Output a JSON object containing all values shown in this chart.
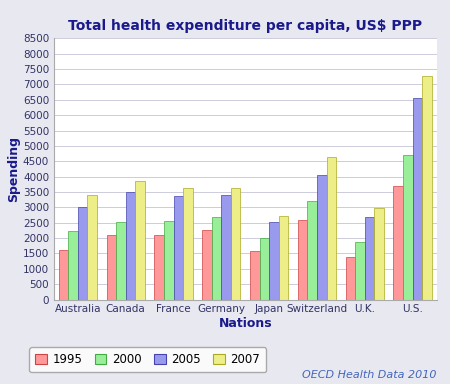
{
  "title": "Total health expenditure per capita, US$ PPP",
  "xlabel": "Nations",
  "ylabel": "Spending",
  "nations": [
    "Australia",
    "Canada",
    "France",
    "Germany",
    "Japan",
    "Switzerland",
    "U.K.",
    "U.S."
  ],
  "years": [
    "1995",
    "2000",
    "2005",
    "2007"
  ],
  "values": {
    "1995": [
      1600,
      2090,
      2110,
      2250,
      1580,
      2590,
      1370,
      3700
    ],
    "2000": [
      2230,
      2535,
      2560,
      2670,
      2000,
      3220,
      1860,
      4700
    ],
    "2005": [
      3010,
      3490,
      3370,
      3390,
      2510,
      4050,
      2700,
      6550
    ],
    "2007": [
      3400,
      3850,
      3620,
      3620,
      2720,
      4630,
      2990,
      7285
    ]
  },
  "bar_colors": {
    "1995": "#FF9999",
    "2000": "#99EE99",
    "2005": "#9999EE",
    "2007": "#EEEE88"
  },
  "bar_edge_colors": {
    "1995": "#CC4444",
    "2000": "#44AA44",
    "2005": "#4444AA",
    "2007": "#AAAA22"
  },
  "ylim": [
    0,
    8500
  ],
  "yticks": [
    0,
    500,
    1000,
    1500,
    2000,
    2500,
    3000,
    3500,
    4000,
    4500,
    5000,
    5500,
    6000,
    6500,
    7000,
    7500,
    8000,
    8500
  ],
  "background_color": "#E8E8F0",
  "plot_bg_color": "#FFFFFF",
  "title_color": "#1A1A8C",
  "axis_label_color": "#1A1A8C",
  "tick_label_color": "#333366",
  "grid_color": "#CCCCDD",
  "annotation_text": "OECD Health Data 2010",
  "annotation_color": "#4466BB",
  "legend_edge_color": "#999999"
}
